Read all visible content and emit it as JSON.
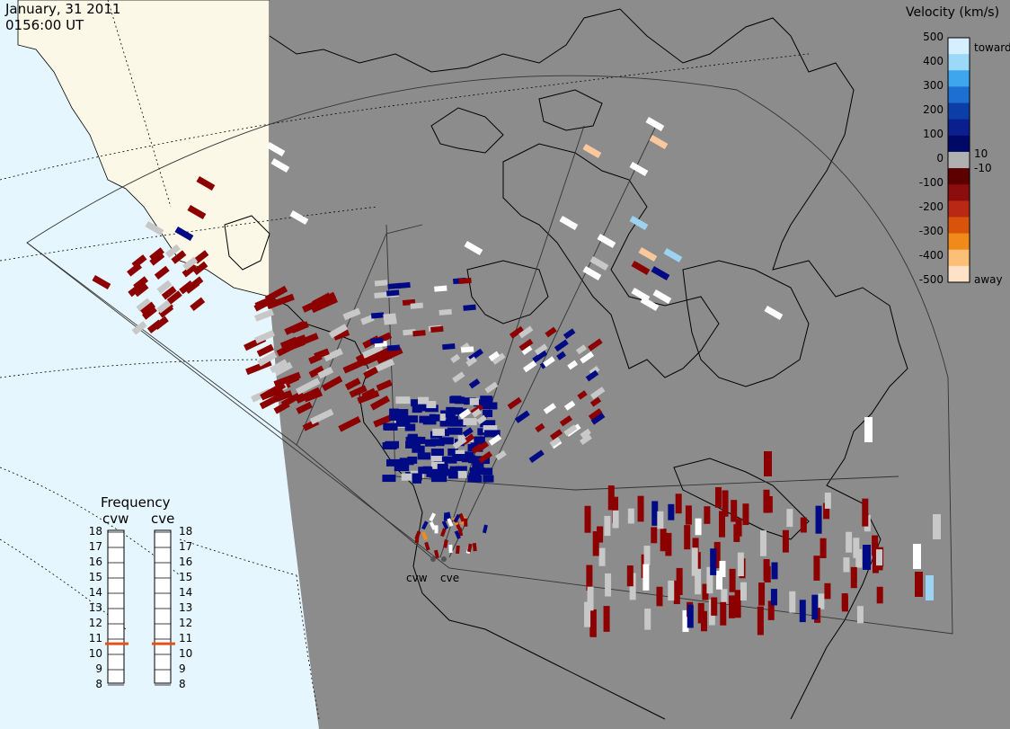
{
  "header": {
    "date": "January, 31 2011",
    "time": "0156:00 UT"
  },
  "colorbar": {
    "title": "Velocity (km/s)",
    "tick_labels": [
      "500",
      "400",
      "300",
      "200",
      "100",
      "0",
      "-100",
      "-200",
      "-300",
      "-400",
      "-500"
    ],
    "extra_labels": [
      "10",
      "-10"
    ],
    "toward_label": "toward",
    "away_label": "away",
    "colors": [
      "#d6efff",
      "#9cd8f8",
      "#3ea6ec",
      "#1d6fd2",
      "#0c3ea8",
      "#0a1f8e",
      "#000a66",
      "#b0b0b0",
      "#5c0000",
      "#8c0d0d",
      "#b82814",
      "#d8540a",
      "#f08a1a",
      "#fbbf78",
      "#fde2c8"
    ]
  },
  "frequency": {
    "title": "Frequency",
    "radars": [
      "cvw",
      "cve"
    ],
    "tick_labels": [
      "18",
      "17",
      "16",
      "15",
      "14",
      "13",
      "12",
      "11",
      "10",
      "9",
      "8"
    ],
    "values_mhz": [
      10.7,
      10.7
    ]
  },
  "map": {
    "radar_sites": [
      "cvw",
      "cve"
    ],
    "ocean_color": "#e6f6ff",
    "land_color": "#fbf8e8",
    "night_color": "#8c8c8c",
    "scatter_colors": {
      "ground": "#c8c8c8",
      "dark_red": "#8c0000",
      "dark_blue": "#000a85",
      "white": "#ffffff",
      "light_blue": "#9cd2f2",
      "peach": "#fbc89e",
      "orange": "#f08a1a"
    }
  }
}
